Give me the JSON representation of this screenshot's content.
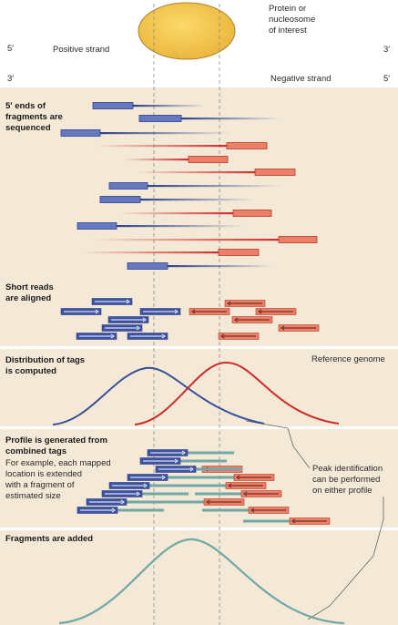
{
  "protein_label": [
    "Protein or",
    "nucleosome",
    "of interest"
  ],
  "positive_strand": {
    "label": "Positive strand",
    "end_left": "5′",
    "end_right": "3′"
  },
  "negative_strand": {
    "label": "Negative strand",
    "end_left": "3′",
    "end_right": "5′"
  },
  "panels": {
    "sequencing": {
      "title": [
        "5′ ends of",
        "fragments are",
        "sequenced"
      ]
    },
    "alignment": {
      "title": [
        "Short reads",
        "are aligned"
      ]
    },
    "distribution": {
      "title": [
        "Distribution of tags",
        "is computed"
      ],
      "reference": "Reference genome"
    },
    "profile": {
      "title": [
        "Profile is generated from",
        "combined tags"
      ],
      "note": [
        "For example, each mapped",
        "location is extended",
        "with a fragment of",
        "estimated size"
      ],
      "peak_note": [
        "Peak identification",
        "can be performed",
        "on either profile"
      ]
    },
    "fragments": {
      "title": "Fragments are added"
    }
  },
  "colors": {
    "positive": "#3a4f9a",
    "positive_fill": "#6678bf",
    "negative": "#cf2b2b",
    "negative_fill": "#ec7f68",
    "panel_bg": "#f4e9d6",
    "profile_line": "#6fa8a4",
    "protein": "#f6c64a"
  }
}
